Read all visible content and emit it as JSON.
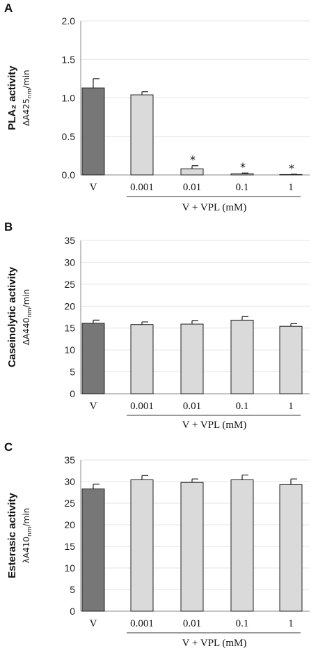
{
  "chart_data": [
    {
      "panel": "A",
      "type": "bar",
      "ylabel_main": "PLA₂ activity",
      "ylabel_unit": "ΔA425nm/min",
      "ylabel_unit_parts": [
        "ΔA425",
        "nm",
        "/min"
      ],
      "ylim": [
        0,
        2.0
      ],
      "yticks": [
        "0.0",
        "0.5",
        "1.0",
        "1.5",
        "2.0"
      ],
      "ytick_values": [
        0,
        0.5,
        1.0,
        1.5,
        2.0
      ],
      "categories": [
        "V",
        "0.001",
        "0.01",
        "0.1",
        "1"
      ],
      "values": [
        1.13,
        1.04,
        0.08,
        0.015,
        0.005
      ],
      "errors": [
        0.12,
        0.04,
        0.04,
        0.01,
        0.004
      ],
      "significant": [
        false,
        false,
        true,
        true,
        true
      ],
      "significance_marker": "*",
      "group_label": "V + VPL (mM)",
      "grid": true
    },
    {
      "panel": "B",
      "type": "bar",
      "ylabel_main": "Caseinolytic activity",
      "ylabel_unit": "ΔA440nm/min",
      "ylabel_unit_parts": [
        "ΔA440",
        "nm",
        "/min"
      ],
      "ylim": [
        0,
        35
      ],
      "yticks": [
        "0",
        "5",
        "10",
        "15",
        "20",
        "25",
        "30",
        "35"
      ],
      "ytick_values": [
        0,
        5,
        10,
        15,
        20,
        25,
        30,
        35
      ],
      "categories": [
        "V",
        "0.001",
        "0.01",
        "0.1",
        "1"
      ],
      "values": [
        16.1,
        15.8,
        15.9,
        16.8,
        15.4
      ],
      "errors": [
        0.7,
        0.6,
        0.8,
        0.8,
        0.6
      ],
      "significant": [
        false,
        false,
        false,
        false,
        false
      ],
      "significance_marker": "*",
      "group_label": "V + VPL (mM)",
      "grid": true
    },
    {
      "panel": "C",
      "type": "bar",
      "ylabel_main": "Esterasic activity",
      "ylabel_unit": "λA410nm/min",
      "ylabel_unit_parts": [
        "λA410",
        "nm",
        "/min"
      ],
      "ylim": [
        0,
        35
      ],
      "yticks": [
        "0",
        "5",
        "10",
        "15",
        "20",
        "25",
        "30",
        "35"
      ],
      "ytick_values": [
        0,
        5,
        10,
        15,
        20,
        25,
        30,
        35
      ],
      "categories": [
        "V",
        "0.001",
        "0.01",
        "0.1",
        "1"
      ],
      "values": [
        28.3,
        30.4,
        29.8,
        30.4,
        29.3
      ],
      "errors": [
        1.1,
        1.0,
        0.8,
        1.1,
        1.3
      ],
      "significant": [
        false,
        false,
        false,
        false,
        false
      ],
      "significance_marker": "*",
      "group_label": "V + VPL (mM)",
      "grid": true
    }
  ],
  "colors": {
    "control_bar": "#777777",
    "treatment_bar": "#dadada"
  }
}
